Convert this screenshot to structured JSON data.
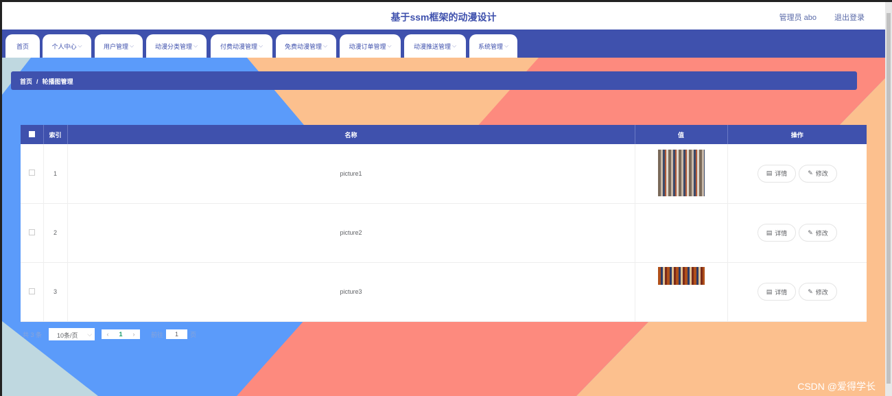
{
  "header": {
    "title": "基于ssm框架的动漫设计",
    "user": "管理员 abo",
    "logout": "退出登录"
  },
  "nav": [
    {
      "label": "首页",
      "dropdown": false
    },
    {
      "label": "个人中心",
      "dropdown": true
    },
    {
      "label": "用户管理",
      "dropdown": true
    },
    {
      "label": "动漫分类管理",
      "dropdown": true
    },
    {
      "label": "付费动漫管理",
      "dropdown": true
    },
    {
      "label": "免费动漫管理",
      "dropdown": true
    },
    {
      "label": "动漫订单管理",
      "dropdown": true
    },
    {
      "label": "动漫推送管理",
      "dropdown": true
    },
    {
      "label": "系统管理",
      "dropdown": true
    }
  ],
  "breadcrumb": {
    "home": "首页",
    "sep": "/",
    "current": "轮播图管理"
  },
  "table": {
    "headers": {
      "index": "索引",
      "name": "名称",
      "value": "值",
      "actions": "操作"
    },
    "rows": [
      {
        "index": "1",
        "name": "picture1",
        "image": "full"
      },
      {
        "index": "2",
        "name": "picture2",
        "image": "none"
      },
      {
        "index": "3",
        "name": "picture3",
        "image": "partial"
      }
    ],
    "detail_label": "详情",
    "edit_label": "修改"
  },
  "pager": {
    "total": "共 3 条",
    "page_size": "10条/页",
    "current_page": "1",
    "goto_label": "前往",
    "goto_value": "1",
    "page_suffix": "页"
  },
  "watermark": "CSDN @爱得学长",
  "colors": {
    "primary": "#3f51ad",
    "bg_blue": "#5b9bfa",
    "bg_peach": "#fcc08e",
    "bg_salmon": "#fd8a7e",
    "bg_light": "#bfd8e0"
  }
}
